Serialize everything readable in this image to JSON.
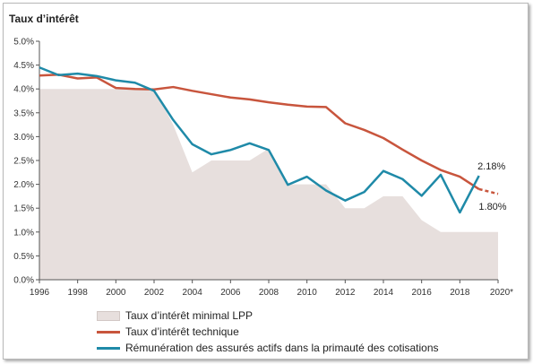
{
  "chart_data": {
    "type": "line",
    "title": "Taux d’intérêt",
    "xlabel": "",
    "ylabel": "",
    "x": [
      1996,
      1997,
      1998,
      1999,
      2000,
      2001,
      2002,
      2003,
      2004,
      2005,
      2006,
      2007,
      2008,
      2009,
      2010,
      2011,
      2012,
      2013,
      2014,
      2015,
      2016,
      2017,
      2018,
      2019,
      2020
    ],
    "xticks": [
      "1996",
      "1998",
      "2000",
      "2002",
      "2004",
      "2006",
      "2008",
      "2010",
      "2012",
      "2014",
      "2016",
      "2018",
      "2020*"
    ],
    "xtick_values": [
      1996,
      1998,
      2000,
      2002,
      2004,
      2006,
      2008,
      2010,
      2012,
      2014,
      2016,
      2018,
      2020
    ],
    "yticks": [
      "0.0%",
      "0.5%",
      "1.0%",
      "1.5%",
      "2.0%",
      "2.5%",
      "3.0%",
      "3.5%",
      "4.0%",
      "4.5%",
      "5.0%"
    ],
    "ytick_values": [
      0,
      0.5,
      1,
      1.5,
      2,
      2.5,
      3,
      3.5,
      4,
      4.5,
      5
    ],
    "xlim": [
      1996,
      2020
    ],
    "ylim": [
      0,
      5
    ],
    "grid": false,
    "legend_position": "bottom",
    "series": [
      {
        "name": "Taux d’intérêt minimal LPP",
        "kind": "area",
        "color": "#e7dfdd",
        "x": [
          1996,
          2002,
          2003,
          2004,
          2005,
          2006,
          2007,
          2008,
          2009,
          2010,
          2011,
          2012,
          2013,
          2014,
          2015,
          2016,
          2017,
          2018,
          2019,
          2020
        ],
        "values": [
          4.0,
          4.0,
          3.25,
          2.25,
          2.5,
          2.5,
          2.5,
          2.75,
          2.0,
          2.0,
          2.0,
          1.5,
          1.5,
          1.75,
          1.75,
          1.25,
          1.0,
          1.0,
          1.0,
          1.0
        ]
      },
      {
        "name": "Taux d’intérêt technique",
        "kind": "line",
        "color": "#c8553d",
        "x": [
          1996,
          1997,
          1998,
          1999,
          2000,
          2001,
          2002,
          2003,
          2004,
          2005,
          2006,
          2007,
          2008,
          2009,
          2010,
          2011,
          2012,
          2013,
          2014,
          2015,
          2016,
          2017,
          2018,
          2019
        ],
        "values": [
          4.28,
          4.3,
          4.22,
          4.24,
          4.02,
          4.0,
          3.99,
          4.04,
          3.96,
          3.89,
          3.82,
          3.78,
          3.72,
          3.67,
          3.63,
          3.62,
          3.28,
          3.14,
          2.97,
          2.73,
          2.5,
          2.3,
          2.16,
          1.9
        ],
        "projection": {
          "x": [
            2019,
            2020
          ],
          "values": [
            1.9,
            1.8
          ]
        }
      },
      {
        "name": "Rémunération des assurés actifs dans la primauté des cotisations",
        "kind": "line",
        "color": "#1f8aa8",
        "x": [
          1996,
          1997,
          1998,
          1999,
          2000,
          2001,
          2002,
          2003,
          2004,
          2005,
          2006,
          2007,
          2008,
          2009,
          2010,
          2011,
          2012,
          2013,
          2014,
          2015,
          2016,
          2017,
          2018,
          2019
        ],
        "values": [
          4.45,
          4.29,
          4.32,
          4.27,
          4.18,
          4.13,
          3.96,
          3.35,
          2.84,
          2.63,
          2.72,
          2.86,
          2.72,
          1.99,
          2.16,
          1.87,
          1.66,
          1.84,
          2.28,
          2.11,
          1.76,
          2.2,
          1.41,
          2.18
        ]
      }
    ],
    "annotations": [
      {
        "text": "2.18%",
        "x": 2019,
        "y": 2.18
      },
      {
        "text": "1.80%",
        "x": 2020,
        "y": 1.8
      }
    ]
  }
}
